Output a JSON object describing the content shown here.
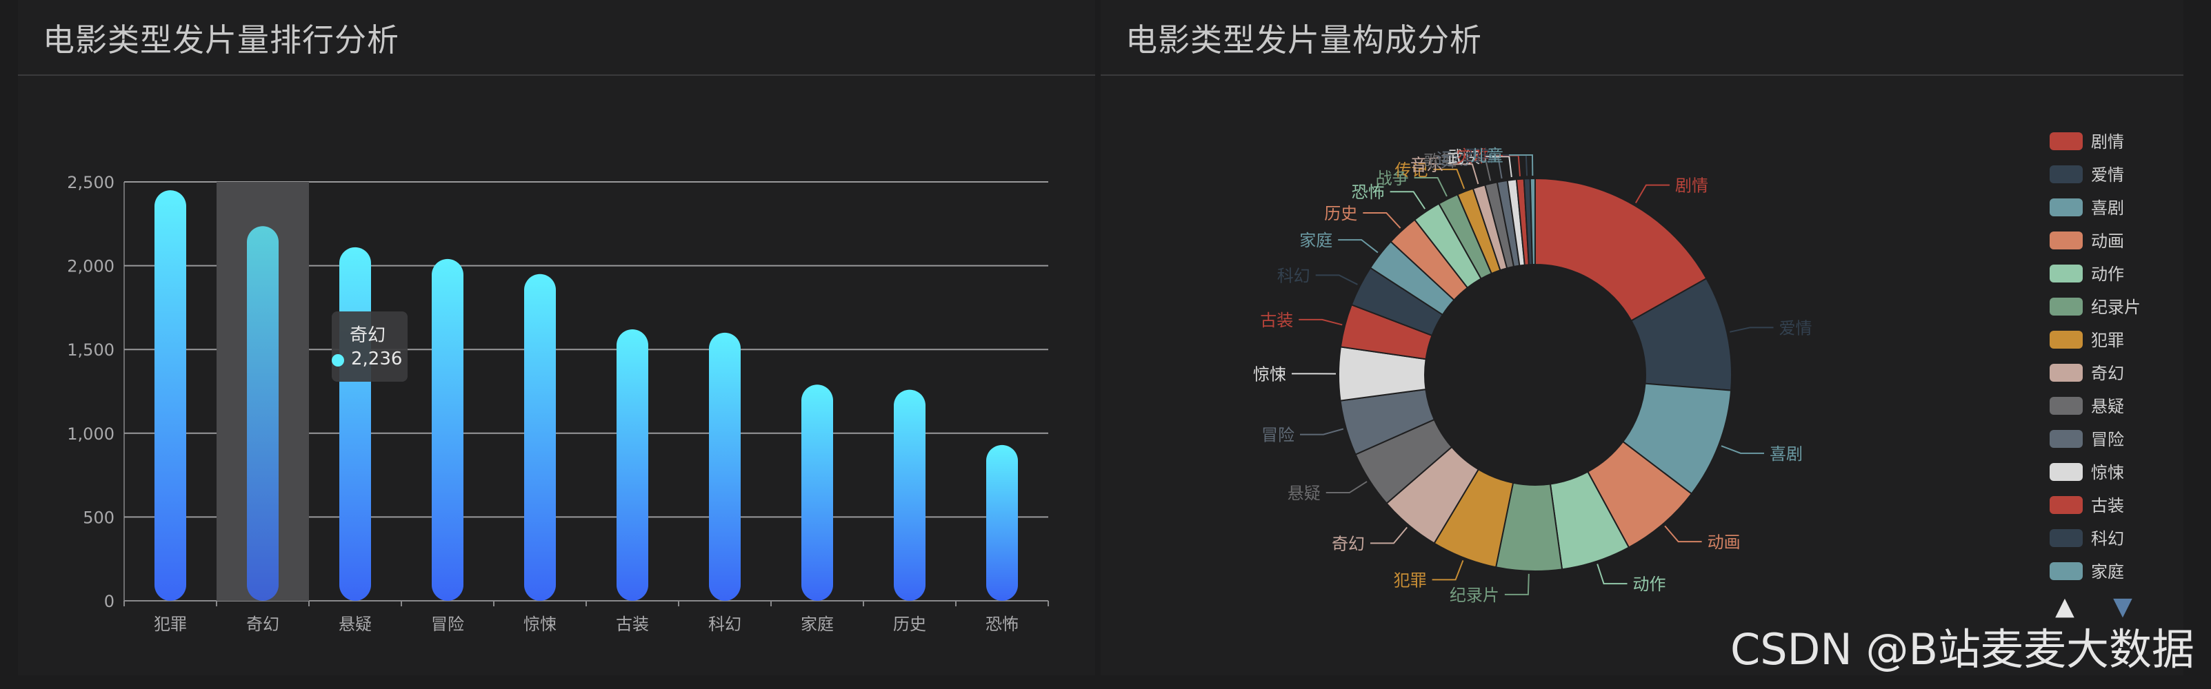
{
  "left_panel": {
    "title": "电影类型发片量排行分析"
  },
  "right_panel": {
    "title": "电影类型发片量构成分析"
  },
  "tooltip": {
    "category": "奇幻",
    "value": "2,236"
  },
  "watermark": "CSDN @B站麦麦大数据",
  "legend": {
    "up_arrow": "▲",
    "down_arrow": "▼"
  },
  "chart_data": [
    {
      "type": "bar",
      "categories": [
        "犯罪",
        "奇幻",
        "悬疑",
        "冒险",
        "惊悚",
        "古装",
        "科幻",
        "家庭",
        "历史",
        "恐怖"
      ],
      "values": [
        2450,
        2236,
        2110,
        2040,
        1950,
        1620,
        1600,
        1290,
        1260,
        930
      ],
      "ylim": [
        0,
        2500
      ],
      "yticks": [
        0,
        500,
        1000,
        1500,
        2000,
        2500
      ],
      "ytick_labels": [
        "0",
        "500",
        "1,000",
        "1,500",
        "2,000",
        "2,500"
      ],
      "grid": true,
      "highlighted_category": "奇幻",
      "gradient": [
        "#5ef0ff",
        "#3a66f5"
      ]
    },
    {
      "type": "pie",
      "donut": true,
      "labels": [
        "剧情",
        "爱情",
        "喜剧",
        "动画",
        "动作",
        "纪录片",
        "犯罪",
        "奇幻",
        "悬疑",
        "冒险",
        "惊悚",
        "古装",
        "科幻",
        "家庭",
        "历史",
        "恐怖",
        "战争",
        "传记",
        "音乐",
        "歌舞",
        "运动",
        "武侠",
        "灾难",
        "西部",
        "儿童"
      ],
      "values": [
        5000,
        2800,
        2700,
        2000,
        1700,
        1600,
        1600,
        1500,
        1400,
        1350,
        1300,
        1050,
        1000,
        800,
        780,
        700,
        500,
        400,
        300,
        300,
        250,
        220,
        180,
        150,
        120
      ],
      "colors": [
        "#b8433a",
        "#33414f",
        "#6b9aa3",
        "#d48263",
        "#93c9aa",
        "#759e81",
        "#c88e35",
        "#c5a79d",
        "#6b6b6d",
        "#5f6a76",
        "#dadada",
        "#b8433a",
        "#33414f",
        "#6b9aa3",
        "#d48263",
        "#93c9aa",
        "#759e81",
        "#c88e35",
        "#c5a79d",
        "#6b6b6d",
        "#5f6a76",
        "#dadada",
        "#b8433a",
        "#33414f",
        "#6b9aa3"
      ],
      "outer_labels": [
        "剧情",
        "爱情",
        "喜剧",
        "动画",
        "动作",
        "纪录片",
        "犯罪",
        "奇幻",
        "悬疑",
        "冒险",
        "惊悚",
        "古装",
        "科幻",
        "家庭",
        "历史",
        "恐怖",
        "战争",
        "传记",
        "音乐",
        "歌舞",
        "运动",
        "武侠",
        "灾难",
        "西部",
        "儿童"
      ],
      "legend_entries": [
        "剧情",
        "爱情",
        "喜剧",
        "动画",
        "动作",
        "纪录片",
        "犯罪",
        "奇幻",
        "悬疑",
        "冒险",
        "惊悚",
        "古装",
        "科幻",
        "家庭"
      ],
      "legend_position": "right"
    }
  ]
}
